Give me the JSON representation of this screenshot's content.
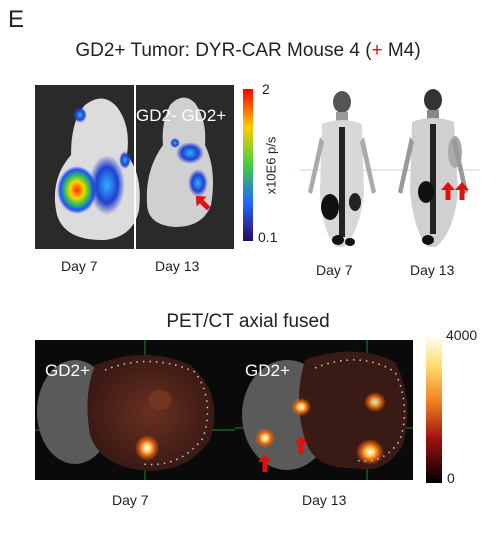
{
  "panel_letter": "E",
  "figure_title": {
    "prefix": "GD2+ Tumor: DYR-CAR Mouse 4 (",
    "marker": "+",
    "suffix": " M4)"
  },
  "colors": {
    "marker_red": "#e01010",
    "accent": "#e01010"
  },
  "bli": {
    "day7_label": "Day 7",
    "day13_label": "Day 13",
    "inset_label": "GD2- GD2+",
    "colorbar": {
      "max": "2",
      "min": "0.1",
      "unit": "x10E6 p/s"
    }
  },
  "pet_mip": {
    "day7_label": "Day 7",
    "day13_label": "Day 13"
  },
  "pet_ct": {
    "section_title": "PET/CT axial fused",
    "day7_tag": "GD2+",
    "day13_tag": "GD2+",
    "day7_label": "Day 7",
    "day13_label": "Day 13",
    "colorbar": {
      "max": "4000",
      "min": "0"
    }
  },
  "icons": [
    "arrow-up-icon"
  ]
}
